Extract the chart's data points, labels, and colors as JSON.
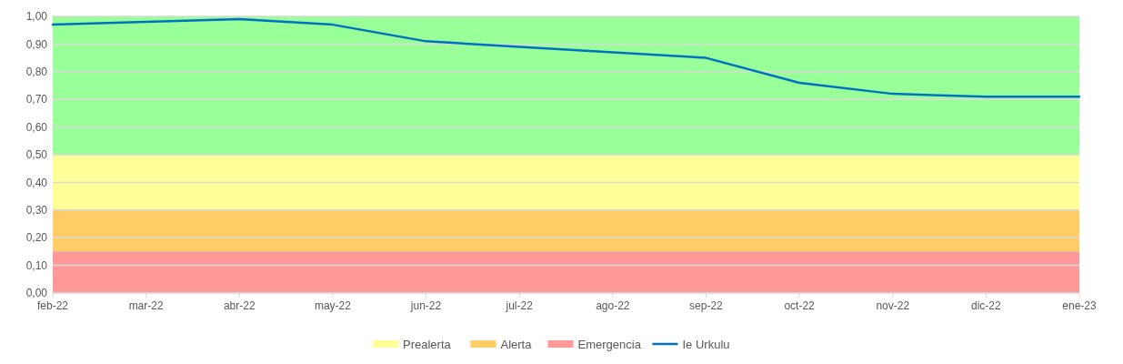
{
  "chart_data": {
    "type": "line",
    "categories": [
      "feb-22",
      "mar-22",
      "abr-22",
      "may-22",
      "jun-22",
      "jul-22",
      "ago-22",
      "sep-22",
      "oct-22",
      "nov-22",
      "dic-22",
      "ene-23"
    ],
    "series": [
      {
        "name": "Ie Urkulu",
        "color": "#0070c0",
        "values": [
          0.97,
          0.98,
          0.99,
          0.97,
          0.91,
          0.89,
          0.87,
          0.85,
          0.76,
          0.72,
          0.71,
          0.71
        ]
      }
    ],
    "bands": [
      {
        "axis": "y",
        "from": 0.5,
        "to": 1,
        "color": "#99ff99"
      },
      {
        "axis": "y",
        "from": 0.3,
        "to": 0.5,
        "label": "Prealerta",
        "color": "#ffff99"
      },
      {
        "axis": "y",
        "from": 0.15,
        "to": 0.3,
        "label": "Alerta",
        "color": "#ffcc66"
      },
      {
        "axis": "y",
        "from": 0,
        "to": 0.15,
        "label": "Emergencia",
        "color": "#ff9999"
      }
    ],
    "ylim": [
      0,
      1
    ],
    "yticks": [
      {
        "value": 0,
        "label": "0,00"
      },
      {
        "value": 0.1,
        "label": "0,10"
      },
      {
        "value": 0.2,
        "label": "0,20"
      },
      {
        "value": 0.3,
        "label": "0,30"
      },
      {
        "value": 0.4,
        "label": "0,40"
      },
      {
        "value": 0.5,
        "label": "0,50"
      },
      {
        "value": 0.6,
        "label": "0,60"
      },
      {
        "value": 0.7,
        "label": "0,70"
      },
      {
        "value": 0.8,
        "label": "0,80"
      },
      {
        "value": 0.9,
        "label": "0,90"
      },
      {
        "value": 1,
        "label": "1,00"
      }
    ],
    "grid": "y",
    "legend": "bottom",
    "marker": "none",
    "line_style": "solid"
  }
}
